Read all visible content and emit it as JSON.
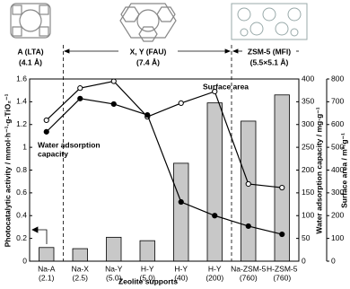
{
  "chart_data": {
    "type": "bar",
    "header_groups": [
      {
        "name": "A (LTA)",
        "pore": "(4.1 Å)"
      },
      {
        "name": "X, Y (FAU)",
        "pore": "(7.4 Å)"
      },
      {
        "name": "ZSM-5 (MFI)",
        "pore": "(5.5×5.1 Å)"
      }
    ],
    "categories": [
      "Na-A",
      "Na-X",
      "Na-Y",
      "H-Y",
      "H-Y",
      "H-Y",
      "Na-ZSM-5",
      "H-ZSM-5"
    ],
    "category_sublabels": [
      "(2.1)",
      "(2.5)",
      "(5.0)",
      "(5.0)",
      "(40)",
      "(200)",
      "(760)",
      "(760)"
    ],
    "x_label": "Zeolite supports",
    "y_label": "Photocatalytic activity / mmol·h⁻¹·g-TiO₂⁻¹",
    "y2_label": "Water adsorption capacity / mg·g⁻¹",
    "y3_label": "Surface area / m²·g⁻¹",
    "ylim": [
      0,
      1.6
    ],
    "yticks": [
      0,
      0.2,
      0.4,
      0.6,
      0.8,
      1,
      1.2,
      1.4,
      1.6
    ],
    "y2lim": [
      0,
      400
    ],
    "y2ticks": [
      0,
      50,
      100,
      150,
      200,
      250,
      300,
      350,
      400
    ],
    "y3lim": [
      0,
      800
    ],
    "y3ticks": [
      0,
      100,
      200,
      300,
      400,
      500,
      600,
      700,
      800
    ],
    "annotations": [
      "Surface area",
      "Water adsorption",
      "capacity"
    ],
    "series": [
      {
        "type": "bar",
        "color": "#c8c8c8",
        "values": [
          0.12,
          0.11,
          0.21,
          0.18,
          0.86,
          1.39,
          1.23,
          1.46
        ]
      },
      {
        "type": "line",
        "axis": "y3",
        "marker": "open",
        "color": "#000000",
        "values": [
          619,
          760,
          790,
          634,
          694,
          745,
          339,
          323
        ]
      },
      {
        "type": "line",
        "axis": "y2",
        "marker": "filled",
        "color": "#000000",
        "values": [
          284,
          357,
          345,
          321,
          130,
          100,
          77,
          59
        ]
      }
    ]
  }
}
